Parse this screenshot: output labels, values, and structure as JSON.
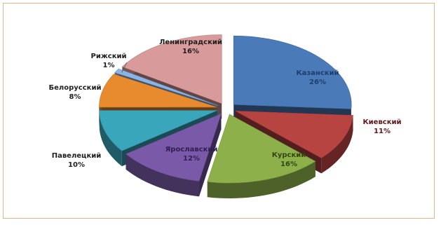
{
  "chart_data": {
    "type": "pie",
    "style": "3d-exploded",
    "title": "",
    "legend": "none",
    "slices": [
      {
        "label": "Казанский",
        "value": 26,
        "pct_label": "26%",
        "color": "#4a7ab8"
      },
      {
        "label": "Киевский",
        "value": 11,
        "pct_label": "11%",
        "color": "#b84442"
      },
      {
        "label": "Курский",
        "value": 16,
        "pct_label": "16%",
        "color": "#8db04a"
      },
      {
        "label": "Ярославский",
        "value": 12,
        "pct_label": "12%",
        "color": "#7a5aa8"
      },
      {
        "label": "Павелецкий",
        "value": 10,
        "pct_label": "10%",
        "color": "#3aa6bc"
      },
      {
        "label": "Белорусский",
        "value": 8,
        "pct_label": "8%",
        "color": "#e88a2e"
      },
      {
        "label": "Рижский",
        "value": 1,
        "pct_label": "1%",
        "color": "#8ab4e6"
      },
      {
        "label": "Ленинградский",
        "value": 16,
        "pct_label": "16%",
        "color": "#d89a9a"
      }
    ]
  }
}
